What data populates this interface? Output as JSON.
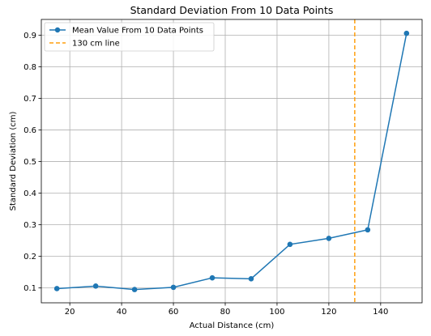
{
  "chart_data": {
    "type": "line",
    "title": "Standard Deviation From 10 Data Points",
    "xlabel": "Actual Distance (cm)",
    "ylabel": "Standard Deviation (cm)",
    "xlim": [
      9,
      156
    ],
    "ylim": [
      0.053,
      0.95
    ],
    "x_ticks": [
      20,
      40,
      60,
      80,
      100,
      120,
      140
    ],
    "y_ticks": [
      0.1,
      0.2,
      0.3,
      0.4,
      0.5,
      0.6,
      0.7,
      0.8,
      0.9
    ],
    "grid": true,
    "legend_position": "top-left",
    "series": [
      {
        "name": "Mean Value From 10 Data Points",
        "color": "#1f77b4",
        "marker": "circle",
        "x": [
          15,
          30,
          45,
          60,
          75,
          90,
          105,
          120,
          135,
          150
        ],
        "y": [
          0.098,
          0.106,
          0.095,
          0.102,
          0.132,
          0.129,
          0.238,
          0.257,
          0.284,
          0.906
        ]
      }
    ],
    "vlines": [
      {
        "name": "130 cm line",
        "x": 130,
        "color": "#ff9f0e",
        "style": "dashed"
      }
    ]
  }
}
